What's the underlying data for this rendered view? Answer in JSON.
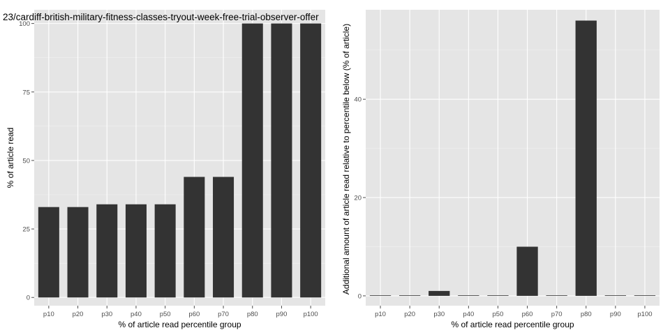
{
  "chart_data": [
    {
      "type": "bar",
      "title": "23/cardiff-british-military-fitness-classes-tryout-week-free-trial-observer-offer",
      "xlabel": "% of article read percentile group",
      "ylabel": "% of article read",
      "categories": [
        "p10",
        "p20",
        "p30",
        "p40",
        "p50",
        "p60",
        "p70",
        "p80",
        "p90",
        "p100"
      ],
      "values": [
        33,
        33,
        34,
        34,
        34,
        44,
        44,
        100,
        100,
        100
      ],
      "ylim": [
        -3,
        105
      ],
      "yticks": [
        0,
        25,
        50,
        75,
        100
      ],
      "grid": true,
      "colors": {
        "bar": "#333333",
        "panel": "#e5e5e5",
        "grid": "#ffffff"
      }
    },
    {
      "type": "bar",
      "title": "",
      "xlabel": "% of article read percentile group",
      "ylabel": "Additional amount of article read relative to percentile below (% of article)",
      "categories": [
        "p10",
        "p20",
        "p30",
        "p40",
        "p50",
        "p60",
        "p70",
        "p80",
        "p90",
        "p100"
      ],
      "values": [
        0,
        0,
        1,
        0,
        0,
        10,
        0,
        56,
        0,
        0
      ],
      "ylim": [
        -2,
        58.2
      ],
      "yticks": [
        0,
        20,
        40
      ],
      "grid": true,
      "colors": {
        "bar": "#333333",
        "panel": "#e5e5e5",
        "grid": "#ffffff"
      }
    }
  ]
}
